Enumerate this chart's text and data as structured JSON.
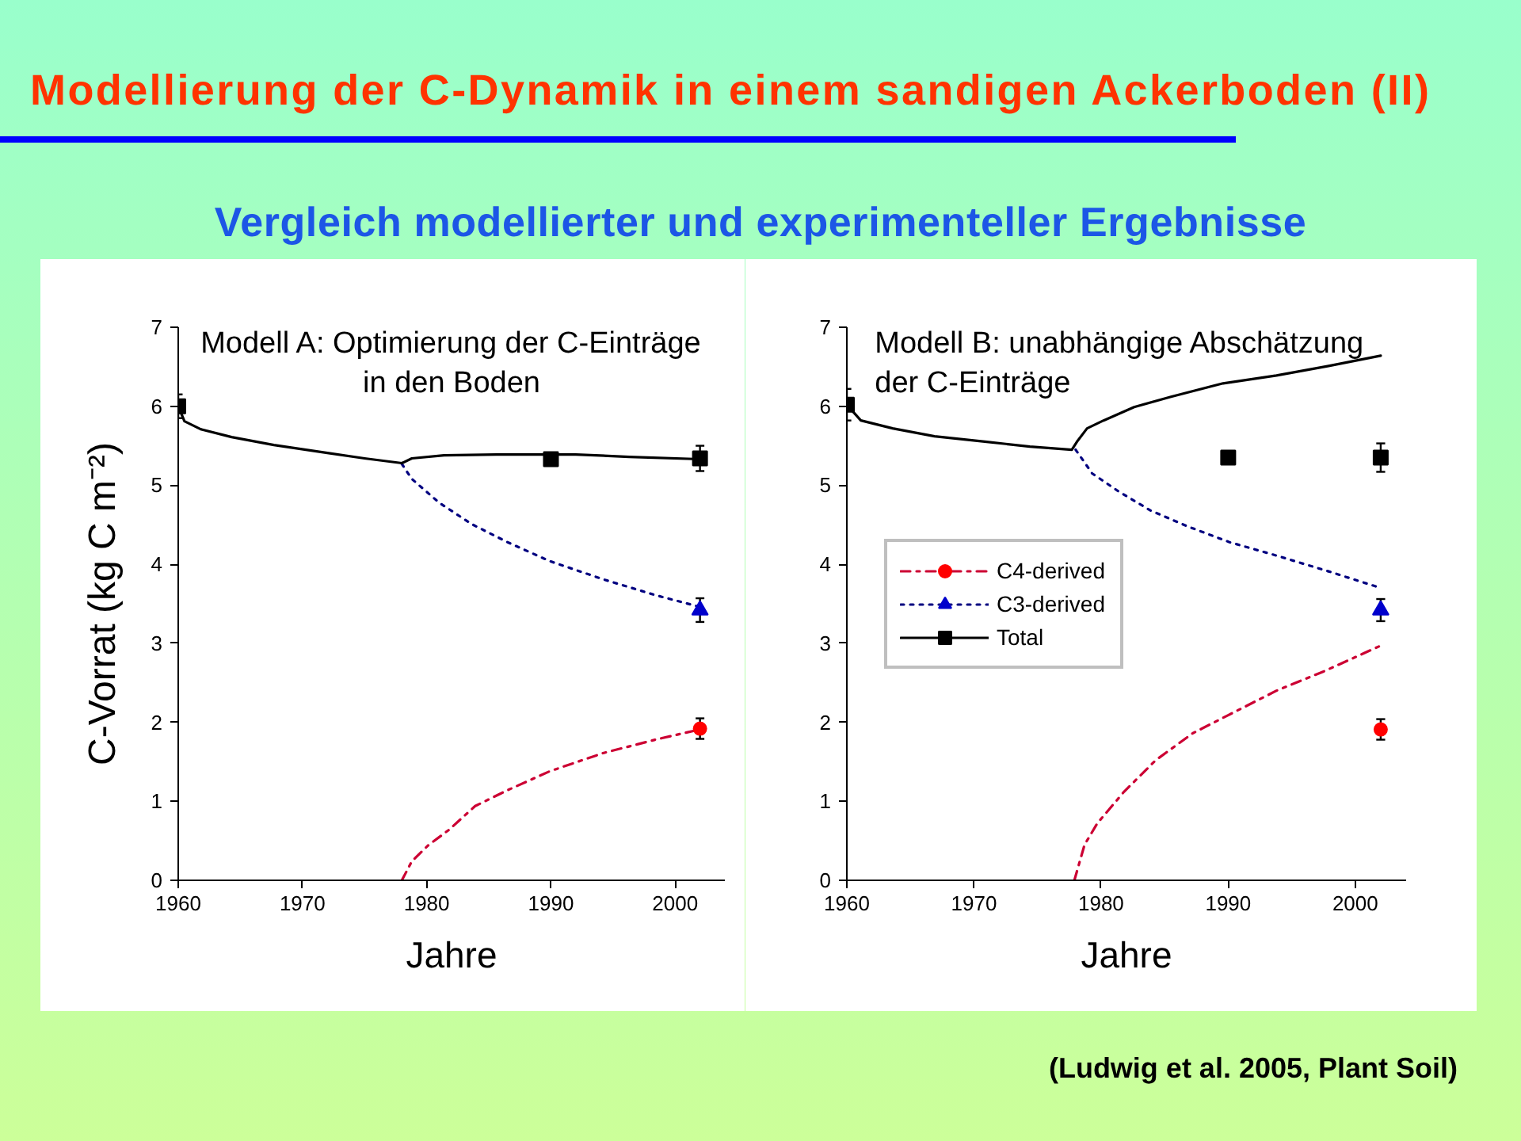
{
  "chart_data": [
    {
      "type": "line",
      "title": "Modell A: Optimierung der C-Einträge\nin den Boden",
      "xlabel": "Jahre",
      "ylabel": "C-Vorrat (kg C m⁻²)",
      "annotations": [
        "Modellierung der C-Dynamik in einem sandigen Ackerboden (II)",
        "Vergleich modellierter und experimenteller Ergebnisse"
      ],
      "xlim": [
        1960,
        2004
      ],
      "xticks": [
        1960,
        1970,
        1980,
        1990,
        2000
      ],
      "ylim": [
        0,
        7
      ],
      "yticks": [
        0,
        1,
        2,
        3,
        4,
        5,
        6,
        7
      ],
      "series": [
        {
          "color": "#cc0033",
          "line_style": "dashdot",
          "x": [
            1978,
            1978.8,
            1980.1,
            1981.8,
            1983.9,
            1986.5,
            1989.9,
            1994.2,
            1998.4,
            2002
          ],
          "values": [
            0,
            0.24,
            0.44,
            0.64,
            0.94,
            1.14,
            1.38,
            1.61,
            1.78,
            1.91
          ]
        },
        {
          "color": "#000080",
          "line_style": "dotted",
          "x": [
            1978,
            1978.8,
            1981,
            1983.6,
            1986.5,
            1989.9,
            1994.2,
            1998.4,
            2002
          ],
          "values": [
            5.27,
            5.08,
            4.78,
            4.51,
            4.28,
            4.04,
            3.81,
            3.61,
            3.46
          ]
        },
        {
          "color": "#000000",
          "line_style": "solid",
          "x": [
            1960,
            1960.5,
            1961.8,
            1964.3,
            1967.7,
            1972,
            1975,
            1978,
            1978.8,
            1981.4,
            1985.6,
            1992,
            1996.3,
            2002
          ],
          "values": [
            6.0,
            5.81,
            5.71,
            5.61,
            5.51,
            5.41,
            5.34,
            5.28,
            5.34,
            5.38,
            5.39,
            5.39,
            5.36,
            5.33
          ]
        },
        {
          "type": "scatter",
          "color": "#ff0000",
          "marker": "circle",
          "x": [
            2002
          ],
          "values": [
            1.92
          ],
          "errors": [
            0.13
          ]
        },
        {
          "type": "scatter",
          "color": "#0000cc",
          "marker": "triangle",
          "x": [
            2002
          ],
          "values": [
            3.42
          ],
          "errors": [
            0.15
          ]
        },
        {
          "type": "scatter",
          "color": "#000000",
          "marker": "square",
          "x": [
            1960,
            1990,
            2002
          ],
          "values": [
            6.0,
            5.33,
            5.34
          ],
          "errors": [
            0.15,
            null,
            0.16
          ]
        }
      ]
    },
    {
      "type": "line",
      "title": "Modell B: unabhängige Abschätzung\nder C-Einträge",
      "xlabel": "Jahre",
      "annotations": [
        "(Ludwig et al. 2005, Plant Soil)"
      ],
      "xlim": [
        1960,
        2004
      ],
      "xticks": [
        1960,
        1970,
        1980,
        1990,
        2000
      ],
      "ylim": [
        0,
        7
      ],
      "yticks": [
        0,
        1,
        2,
        3,
        4,
        5,
        6,
        7
      ],
      "legend": "left",
      "series": [
        {
          "name": "C4-derived",
          "color": "#cc0033",
          "line_style": "dashdot",
          "x": [
            1977.9,
            1978.7,
            1979.7,
            1981.8,
            1984.3,
            1987.2,
            1990,
            1993.8,
            1997.6,
            2002
          ],
          "values": [
            0,
            0.45,
            0.72,
            1.12,
            1.52,
            1.86,
            2.09,
            2.4,
            2.65,
            2.97
          ]
        },
        {
          "name": "C3-derived",
          "color": "#000080",
          "line_style": "dotted",
          "x": [
            1978,
            1979.3,
            1981.4,
            1983.9,
            1986.8,
            1990.1,
            1993.8,
            1997.9,
            2002
          ],
          "values": [
            5.45,
            5.15,
            4.92,
            4.68,
            4.48,
            4.28,
            4.11,
            3.91,
            3.7
          ]
        },
        {
          "name": "Total",
          "color": "#000000",
          "line_style": "solid",
          "x": [
            1960,
            1961.1,
            1963.6,
            1966.9,
            1971,
            1974.4,
            1977.7,
            1978.1,
            1978.9,
            1980.2,
            1982.6,
            1985.5,
            1989.6,
            1993.8,
            1997.9,
            2002
          ],
          "values": [
            6.02,
            5.82,
            5.72,
            5.62,
            5.55,
            5.49,
            5.45,
            5.55,
            5.72,
            5.82,
            5.99,
            6.12,
            6.29,
            6.39,
            6.51,
            6.64
          ]
        },
        {
          "type": "scatter",
          "color": "#ff0000",
          "marker": "circle",
          "x": [
            2002
          ],
          "values": [
            1.91
          ],
          "errors": [
            0.13
          ]
        },
        {
          "type": "scatter",
          "color": "#0000cc",
          "marker": "triangle",
          "x": [
            2002
          ],
          "values": [
            3.42
          ],
          "errors": [
            0.14
          ]
        },
        {
          "type": "scatter",
          "color": "#000000",
          "marker": "square",
          "x": [
            1960,
            1990,
            2002
          ],
          "values": [
            6.02,
            5.35,
            5.35
          ],
          "errors": [
            0.2,
            null,
            0.18
          ]
        }
      ]
    }
  ]
}
